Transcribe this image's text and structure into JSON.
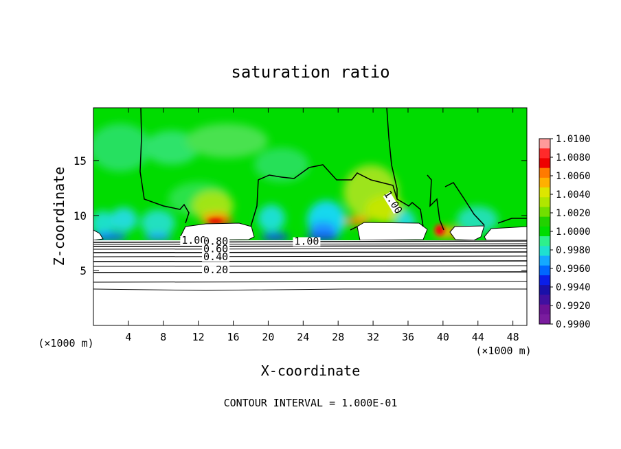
{
  "chart_data": {
    "type": "heatmap",
    "title": "saturation ratio",
    "xlabel": "X-coordinate",
    "ylabel": "Z-coordinate",
    "x_unit_left": "(×1000 m)",
    "x_unit_right": "(×1000 m)",
    "xlim": [
      0,
      49.6
    ],
    "ylim": [
      0,
      19.8
    ],
    "xticks": [
      4,
      8,
      12,
      16,
      20,
      24,
      28,
      32,
      36,
      40,
      44,
      48
    ],
    "yticks": [
      5,
      10,
      15
    ],
    "footer": "CONTOUR INTERVAL = 1.000E-01",
    "colorbar": {
      "levels": [
        "1.0100",
        "1.0080",
        "1.0060",
        "1.0040",
        "1.0020",
        "1.0000",
        "0.9980",
        "0.9960",
        "0.9940",
        "0.9920",
        "0.9900"
      ],
      "colors": [
        "#ff9a9a",
        "#ff2a2a",
        "#ee0000",
        "#ff7a00",
        "#ffb000",
        "#dde600",
        "#b0e600",
        "#72df00",
        "#22d200",
        "#00dc00",
        "#2ef08c",
        "#1fe0d0",
        "#14a8ff",
        "#0066ff",
        "#0a1ee8",
        "#1a10a8",
        "#4010a0",
        "#6c1296",
        "#7a1c9e"
      ]
    },
    "contour_labels": [
      {
        "text": "1.00",
        "x": 11.5,
        "y": 7.5
      },
      {
        "text": "0.80",
        "x": 14.0,
        "y": 7.4
      },
      {
        "text": "0.60",
        "x": 14.0,
        "y": 6.7
      },
      {
        "text": "0.40",
        "x": 14.0,
        "y": 6.0
      },
      {
        "text": "0.20",
        "x": 14.0,
        "y": 4.8
      },
      {
        "text": "1.00",
        "x": 24.4,
        "y": 7.4
      },
      {
        "text": "1.00",
        "x": 34.4,
        "y": 10.6
      }
    ],
    "grid": false,
    "legend": "right"
  }
}
